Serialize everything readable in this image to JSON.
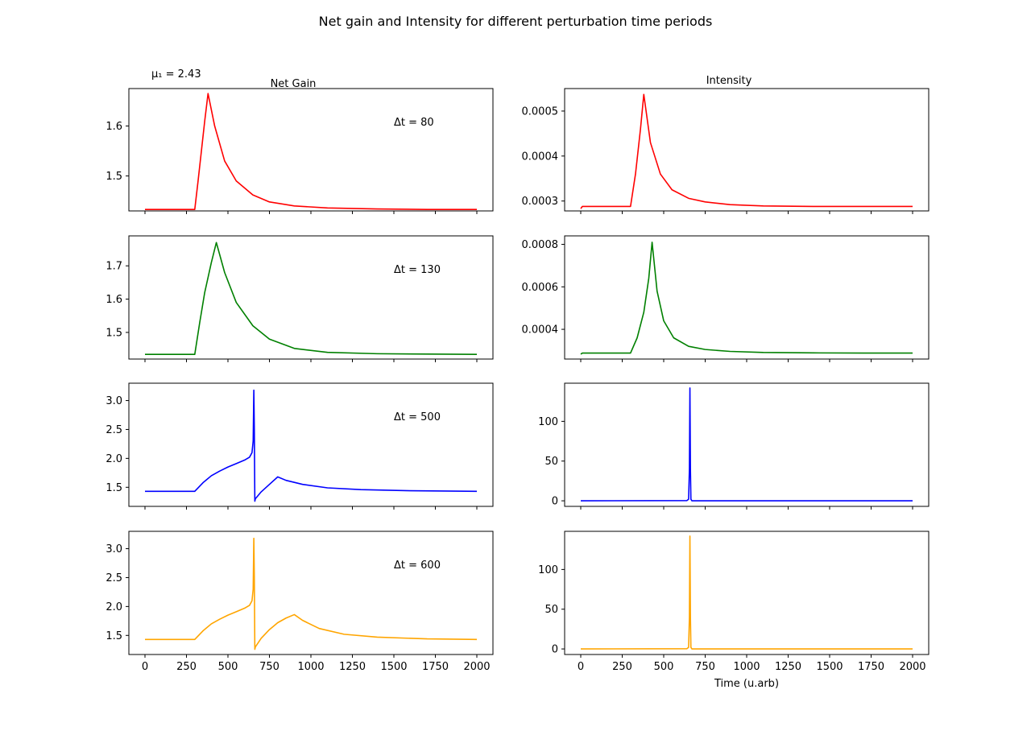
{
  "figure": {
    "title": "Net gain and Intensity for different perturbation time periods",
    "mu_label": "μ₁ = 2.43",
    "left_column_title": "Net Gain",
    "right_column_title": "Intensity",
    "xlabel": "Time (u.arb)"
  },
  "chart_data": [
    {
      "type": "line",
      "panel": "net-gain-dt80",
      "annotation": "Δt = 80",
      "color": "#ff0000",
      "xlim": [
        0,
        2000
      ],
      "ylim": [
        1.43,
        1.675
      ],
      "xticks": [
        0,
        250,
        500,
        750,
        1000,
        1250,
        1500,
        1750,
        2000
      ],
      "yticks": [
        1.5,
        1.6
      ],
      "ytick_labels": [
        "1.5",
        "1.6"
      ],
      "x": [
        0,
        300,
        300,
        320,
        340,
        360,
        380,
        420,
        480,
        550,
        650,
        750,
        900,
        1100,
        1400,
        1700,
        2000
      ],
      "y": [
        1.433,
        1.433,
        1.433,
        1.49,
        1.55,
        1.61,
        1.665,
        1.6,
        1.53,
        1.49,
        1.462,
        1.448,
        1.44,
        1.436,
        1.434,
        1.433,
        1.433
      ]
    },
    {
      "type": "line",
      "panel": "net-gain-dt130",
      "annotation": "Δt = 130",
      "color": "#008000",
      "xlim": [
        0,
        2000
      ],
      "ylim": [
        1.42,
        1.79
      ],
      "xticks": [
        0,
        250,
        500,
        750,
        1000,
        1250,
        1500,
        1750,
        2000
      ],
      "yticks": [
        1.5,
        1.6,
        1.7
      ],
      "ytick_labels": [
        "1.5",
        "1.6",
        "1.7"
      ],
      "x": [
        0,
        300,
        300,
        330,
        360,
        400,
        430,
        480,
        550,
        650,
        750,
        900,
        1100,
        1400,
        1700,
        2000
      ],
      "y": [
        1.434,
        1.434,
        1.434,
        1.53,
        1.62,
        1.71,
        1.77,
        1.68,
        1.59,
        1.52,
        1.48,
        1.452,
        1.44,
        1.436,
        1.435,
        1.434
      ]
    },
    {
      "type": "line",
      "panel": "net-gain-dt500",
      "annotation": "Δt = 500",
      "color": "#0000ff",
      "xlim": [
        0,
        2000
      ],
      "ylim": [
        1.17,
        3.3
      ],
      "xticks": [
        0,
        250,
        500,
        750,
        1000,
        1250,
        1500,
        1750,
        2000
      ],
      "yticks": [
        1.5,
        2.0,
        2.5,
        3.0
      ],
      "ytick_labels": [
        "1.5",
        "2.0",
        "2.5",
        "3.0"
      ],
      "x": [
        0,
        300,
        300,
        350,
        400,
        450,
        500,
        550,
        600,
        630,
        645,
        652,
        656,
        659,
        662,
        665,
        700,
        750,
        800,
        850,
        950,
        1100,
        1300,
        1600,
        2000
      ],
      "y": [
        1.43,
        1.43,
        1.43,
        1.58,
        1.7,
        1.78,
        1.85,
        1.91,
        1.97,
        2.02,
        2.1,
        2.3,
        3.18,
        2.5,
        1.26,
        1.3,
        1.42,
        1.55,
        1.68,
        1.62,
        1.55,
        1.49,
        1.46,
        1.44,
        1.43
      ]
    },
    {
      "type": "line",
      "panel": "net-gain-dt600",
      "annotation": "Δt = 600",
      "color": "#ffa500",
      "xlim": [
        0,
        2000
      ],
      "ylim": [
        1.17,
        3.3
      ],
      "xticks": [
        0,
        250,
        500,
        750,
        1000,
        1250,
        1500,
        1750,
        2000
      ],
      "yticks": [
        1.5,
        2.0,
        2.5,
        3.0
      ],
      "ytick_labels": [
        "1.5",
        "2.0",
        "2.5",
        "3.0"
      ],
      "x": [
        0,
        300,
        300,
        350,
        400,
        450,
        500,
        550,
        600,
        630,
        645,
        652,
        656,
        659,
        662,
        665,
        700,
        750,
        800,
        850,
        900,
        950,
        1050,
        1200,
        1400,
        1700,
        2000
      ],
      "y": [
        1.43,
        1.43,
        1.43,
        1.58,
        1.7,
        1.78,
        1.85,
        1.91,
        1.97,
        2.02,
        2.1,
        2.3,
        3.18,
        2.5,
        1.26,
        1.3,
        1.45,
        1.6,
        1.72,
        1.8,
        1.86,
        1.76,
        1.62,
        1.52,
        1.47,
        1.44,
        1.43
      ]
    },
    {
      "type": "line",
      "panel": "intensity-dt80",
      "annotation": "",
      "color": "#ff0000",
      "xlim": [
        0,
        2000
      ],
      "ylim": [
        0.000278,
        0.00055
      ],
      "xticks": [
        0,
        250,
        500,
        750,
        1000,
        1250,
        1500,
        1750,
        2000
      ],
      "yticks": [
        0.0003,
        0.0004,
        0.0005
      ],
      "ytick_labels": [
        "0.0003",
        "0.0004",
        "0.0005"
      ],
      "x": [
        0,
        10,
        300,
        330,
        360,
        380,
        420,
        480,
        550,
        650,
        750,
        900,
        1100,
        1400,
        1700,
        2000
      ],
      "y": [
        0.000283,
        0.000288,
        0.000288,
        0.00036,
        0.00046,
        0.000537,
        0.00043,
        0.00036,
        0.000325,
        0.000306,
        0.000298,
        0.000292,
        0.000289,
        0.000288,
        0.000288,
        0.000288
      ]
    },
    {
      "type": "line",
      "panel": "intensity-dt130",
      "annotation": "",
      "color": "#008000",
      "xlim": [
        0,
        2000
      ],
      "ylim": [
        0.00026,
        0.00084
      ],
      "xticks": [
        0,
        250,
        500,
        750,
        1000,
        1250,
        1500,
        1750,
        2000
      ],
      "yticks": [
        0.0004,
        0.0006,
        0.0008
      ],
      "ytick_labels": [
        "0.0004",
        "0.0006",
        "0.0008"
      ],
      "x": [
        0,
        10,
        300,
        340,
        380,
        410,
        430,
        460,
        500,
        560,
        650,
        750,
        900,
        1100,
        1400,
        1700,
        2000
      ],
      "y": [
        0.000283,
        0.000288,
        0.000288,
        0.00036,
        0.00048,
        0.00064,
        0.00081,
        0.00058,
        0.00044,
        0.00036,
        0.00032,
        0.000305,
        0.000296,
        0.000291,
        0.000289,
        0.000288,
        0.000288
      ]
    },
    {
      "type": "line",
      "panel": "intensity-dt500",
      "annotation": "",
      "color": "#0000ff",
      "xlim": [
        0,
        2000
      ],
      "ylim": [
        -7,
        148
      ],
      "xticks": [
        0,
        250,
        500,
        750,
        1000,
        1250,
        1500,
        1750,
        2000
      ],
      "yticks": [
        0,
        50,
        100
      ],
      "ytick_labels": [
        "0",
        "50",
        "100"
      ],
      "x": [
        0,
        640,
        650,
        655,
        658,
        661,
        664,
        670,
        2000
      ],
      "y": [
        0,
        0.3,
        2,
        40,
        142,
        40,
        2,
        0,
        0
      ]
    },
    {
      "type": "line",
      "panel": "intensity-dt600",
      "annotation": "",
      "color": "#ffa500",
      "xlim": [
        0,
        2000
      ],
      "ylim": [
        -7,
        148
      ],
      "xticks": [
        0,
        250,
        500,
        750,
        1000,
        1250,
        1500,
        1750,
        2000
      ],
      "yticks": [
        0,
        50,
        100
      ],
      "ytick_labels": [
        "0",
        "50",
        "100"
      ],
      "x": [
        0,
        640,
        650,
        655,
        658,
        661,
        664,
        670,
        2000
      ],
      "y": [
        0,
        0.3,
        2,
        40,
        142,
        40,
        2,
        0,
        0
      ]
    }
  ]
}
